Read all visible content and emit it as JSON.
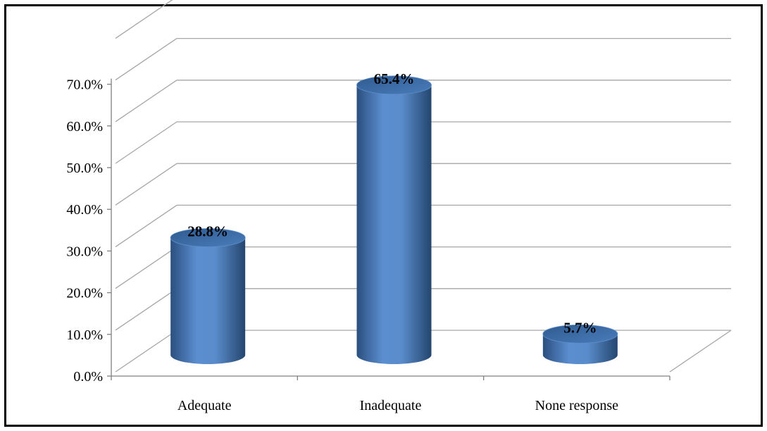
{
  "chart_data": {
    "type": "bar",
    "style": "3d-cylinder",
    "categories": [
      "Adequate",
      "Inadequate",
      "None response"
    ],
    "values": [
      28.8,
      65.4,
      5.7
    ],
    "data_labels": [
      "28.8%",
      "65.4%",
      "5.7%"
    ],
    "title": "",
    "xlabel": "",
    "ylabel": "",
    "ylim": [
      0,
      70
    ],
    "yticks": [
      0,
      10,
      20,
      30,
      40,
      50,
      60,
      70
    ],
    "ytick_labels": [
      "0.0%",
      "10.0%",
      "20.0%",
      "30.0%",
      "40.0%",
      "50.0%",
      "60.0%",
      "70.0%"
    ],
    "grid": true,
    "legend": false,
    "colors": {
      "bar": "#4F81BD",
      "bar_dark": "#2B4F7F",
      "bar_light": "#6A9BD8",
      "top": "#3A6AA3",
      "grid": "#A6A6A6",
      "axis": "#808080",
      "frame": "#000000"
    }
  }
}
